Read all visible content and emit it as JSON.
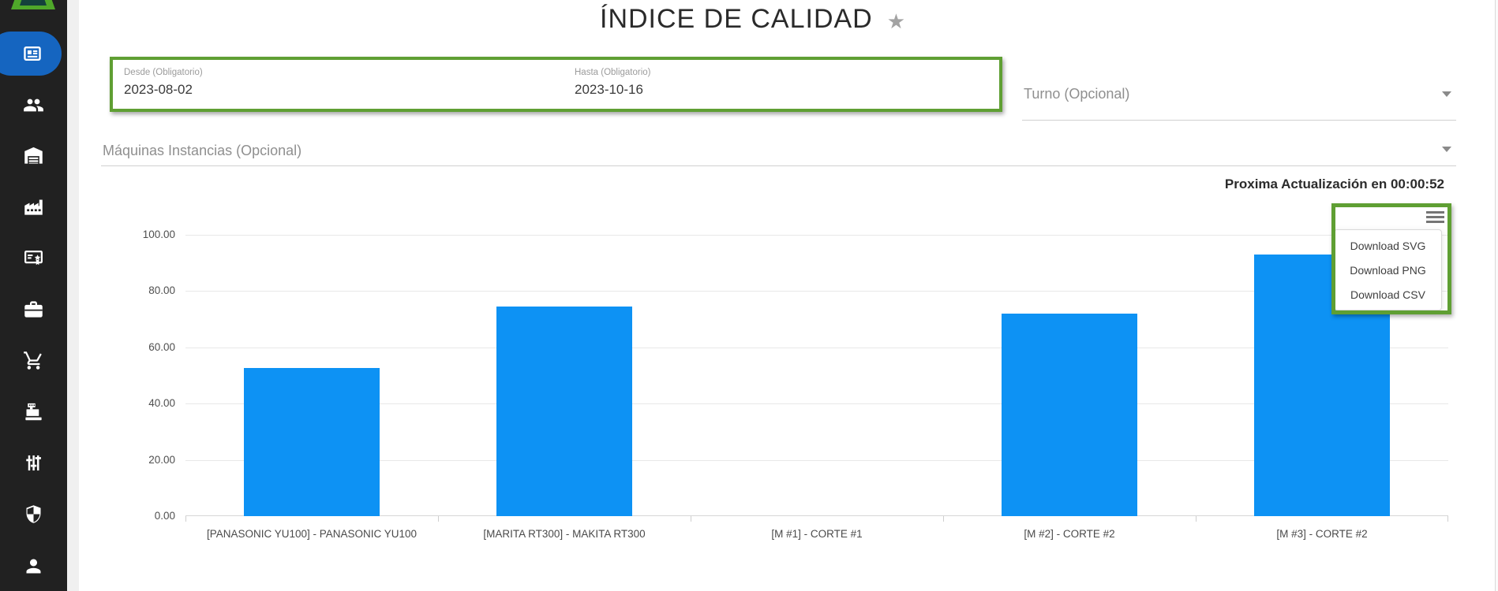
{
  "sidebar": {
    "items": [
      {
        "icon": "dashboard-icon",
        "active": true
      },
      {
        "icon": "people-icon"
      },
      {
        "icon": "warehouse-icon"
      },
      {
        "icon": "factory-icon"
      },
      {
        "icon": "certificate-icon"
      },
      {
        "icon": "briefcase-icon"
      },
      {
        "icon": "cart-icon"
      },
      {
        "icon": "cash-register-icon"
      },
      {
        "icon": "tune-icon"
      },
      {
        "icon": "shield-icon"
      },
      {
        "icon": "person-icon"
      }
    ]
  },
  "header": {
    "title": "ÍNDICE DE CALIDAD",
    "favorite_icon": "star"
  },
  "filters": {
    "desde_label": "Desde (Obligatorio)",
    "desde_value": "2023-08-02",
    "hasta_label": "Hasta (Obligatorio)",
    "hasta_value": "2023-10-16",
    "turno_label": "Turno (Opcional)",
    "maquinas_label": "Máquinas Instancias (Opcional)"
  },
  "status": {
    "next_update": "Proxima Actualización en 00:00:52"
  },
  "chart_menu": {
    "items": [
      "Download SVG",
      "Download PNG",
      "Download CSV"
    ]
  },
  "chart_data": {
    "type": "bar",
    "title": "ÍNDICE DE CALIDAD",
    "categories": [
      "[PANASONIC YU100] - PANASONIC YU100",
      "[MARITA RT300] - MAKITA RT300",
      "[M #1] - CORTE #1",
      "[M #2] - CORTE #2",
      "[M #3] - CORTE #2"
    ],
    "values": [
      52.7,
      74.6,
      0,
      72.1,
      93.0
    ],
    "xlabel": "",
    "ylabel": "",
    "ylim": [
      0,
      100
    ],
    "ytick_labels": [
      "100.00",
      "80.00",
      "60.00",
      "40.00",
      "20.00",
      "0.00"
    ],
    "grid": true,
    "legend": false,
    "bar_color": "#0d92f4"
  },
  "colors": {
    "accent_green": "#5f9f33",
    "bar_blue": "#0d92f4",
    "active_nav_blue": "#1565c0",
    "sidebar_bg": "#212121"
  }
}
